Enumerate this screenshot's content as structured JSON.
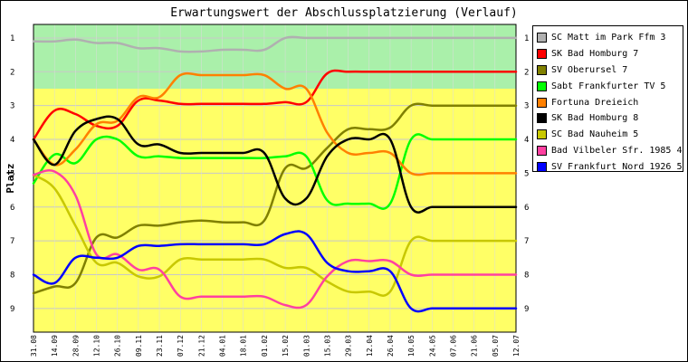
{
  "chart_data": {
    "type": "line",
    "title": "Erwartungswert der Abschlussplatzierung (Verlauf)",
    "ylabel": "Platz",
    "xlabel": "",
    "ylim": [
      0.6,
      9.7
    ],
    "y_inverted": true,
    "y_ticks": [
      "1",
      "2",
      "3",
      "4",
      "5",
      "6",
      "7",
      "8",
      "9"
    ],
    "x_categories": [
      "31.08",
      "14.09",
      "28.09",
      "12.10",
      "26.10",
      "09.11",
      "23.11",
      "07.12",
      "21.12",
      "04.01",
      "18.01",
      "01.02",
      "15.02",
      "01.03",
      "15.03",
      "29.03",
      "12.04",
      "26.04",
      "10.05",
      "24.05",
      "07.06",
      "21.06",
      "05.07",
      "12.07"
    ],
    "bands": [
      {
        "from": 0.6,
        "to": 2.5,
        "color": "#aaf0aa"
      },
      {
        "from": 2.5,
        "to": 9.7,
        "color": "#ffff66"
      }
    ],
    "grid": true,
    "legend_position": "right",
    "series": [
      {
        "name": "SC Matt im Park Ffm 3",
        "color": "#b0b0b0",
        "values": [
          1.1,
          1.1,
          1.05,
          1.15,
          1.15,
          1.3,
          1.3,
          1.4,
          1.4,
          1.35,
          1.35,
          1.35,
          1.0,
          1.0,
          1.0,
          1.0,
          1.0,
          1.0,
          1.0,
          1.0,
          1.0,
          1.0,
          1.0,
          1.0
        ]
      },
      {
        "name": "SK Bad Homburg 7",
        "color": "#ff0000",
        "values": [
          4.0,
          3.15,
          3.25,
          3.6,
          3.6,
          2.85,
          2.85,
          2.95,
          2.95,
          2.95,
          2.95,
          2.95,
          2.9,
          2.9,
          2.05,
          2.0,
          2.0,
          2.0,
          2.0,
          2.0,
          2.0,
          2.0,
          2.0,
          2.0
        ]
      },
      {
        "name": "SV Oberursel 7",
        "color": "#808000",
        "values": [
          8.55,
          8.35,
          8.25,
          6.9,
          6.9,
          6.55,
          6.55,
          6.45,
          6.4,
          6.45,
          6.45,
          6.4,
          4.85,
          4.85,
          4.25,
          3.7,
          3.7,
          3.65,
          3.0,
          3.0,
          3.0,
          3.0,
          3.0,
          3.0
        ]
      },
      {
        "name": "Sabt Frankfurter TV 5",
        "color": "#00ff00",
        "values": [
          5.3,
          4.45,
          4.7,
          4.0,
          4.0,
          4.5,
          4.5,
          4.55,
          4.55,
          4.55,
          4.55,
          4.55,
          4.5,
          4.5,
          5.8,
          5.9,
          5.9,
          5.9,
          4.0,
          4.0,
          4.0,
          4.0,
          4.0,
          4.0
        ]
      },
      {
        "name": "Fortuna Dreieich",
        "color": "#ff8000",
        "values": [
          4.0,
          4.75,
          4.3,
          3.55,
          3.45,
          2.75,
          2.75,
          2.1,
          2.1,
          2.1,
          2.1,
          2.1,
          2.5,
          2.5,
          3.8,
          4.4,
          4.4,
          4.4,
          5.0,
          5.0,
          5.0,
          5.0,
          5.0,
          5.0
        ]
      },
      {
        "name": "SK Bad Homburg 8",
        "color": "#000000",
        "values": [
          4.0,
          4.75,
          3.75,
          3.4,
          3.4,
          4.15,
          4.15,
          4.4,
          4.4,
          4.4,
          4.4,
          4.4,
          5.75,
          5.75,
          4.5,
          4.0,
          4.0,
          4.0,
          6.0,
          6.0,
          6.0,
          6.0,
          6.0,
          6.0
        ]
      },
      {
        "name": "SC Bad Nauheim 5",
        "color": "#c8c800",
        "values": [
          5.05,
          5.45,
          6.55,
          7.65,
          7.65,
          8.05,
          8.05,
          7.55,
          7.55,
          7.55,
          7.55,
          7.55,
          7.8,
          7.8,
          8.2,
          8.5,
          8.5,
          8.5,
          7.0,
          7.0,
          7.0,
          7.0,
          7.0,
          7.0
        ]
      },
      {
        "name": "Bad Vilbeler Sfr. 1985 4",
        "color": "#ff40a0",
        "values": [
          5.05,
          4.95,
          5.65,
          7.4,
          7.4,
          7.85,
          7.85,
          8.65,
          8.65,
          8.65,
          8.65,
          8.65,
          8.9,
          8.9,
          8.05,
          7.6,
          7.6,
          7.6,
          8.0,
          8.0,
          8.0,
          8.0,
          8.0,
          8.0
        ]
      },
      {
        "name": "SV Frankfurt Nord 1926 5",
        "color": "#0000ff",
        "values": [
          8.0,
          8.25,
          7.5,
          7.5,
          7.5,
          7.15,
          7.15,
          7.1,
          7.1,
          7.1,
          7.1,
          7.1,
          6.8,
          6.8,
          7.65,
          7.9,
          7.9,
          7.9,
          9.0,
          9.0,
          9.0,
          9.0,
          9.0,
          9.0
        ]
      }
    ]
  }
}
